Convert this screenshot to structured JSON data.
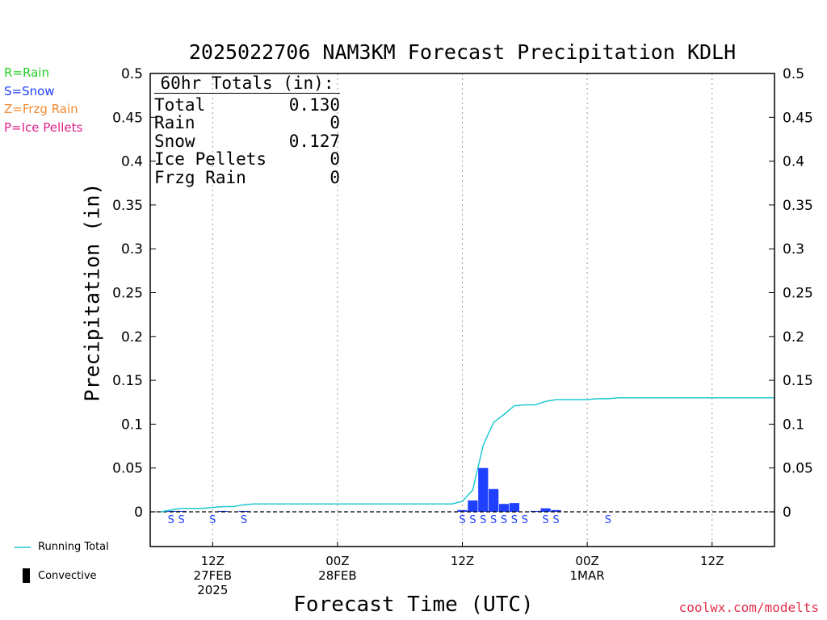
{
  "chart_data": {
    "type": "bar",
    "title": "2025022706 NAM3KM Forecast Precipitation KDLH",
    "xlabel": "Forecast Time (UTC)",
    "ylabel": "Precipitation (in)",
    "ylim": [
      0,
      0.5
    ],
    "y_ticks": [
      "0",
      "0.05",
      "0.1",
      "0.15",
      "0.2",
      "0.25",
      "0.3",
      "0.35",
      "0.4",
      "0.45",
      "0.5"
    ],
    "x_range_hours": [
      6,
      66
    ],
    "x_ticks": [
      {
        "hour": 12,
        "label": "12Z",
        "date": "27FEB",
        "year": "2025"
      },
      {
        "hour": 24,
        "label": "00Z",
        "date": "28FEB",
        "year": ""
      },
      {
        "hour": 36,
        "label": "12Z",
        "date": "",
        "year": ""
      },
      {
        "hour": 48,
        "label": "00Z",
        "date": "1MAR",
        "year": ""
      },
      {
        "hour": 60,
        "label": "12Z",
        "date": "",
        "year": ""
      }
    ],
    "series": [
      {
        "name": "Snow",
        "kind": "bars",
        "color": "#2040ff",
        "points": [
          {
            "hour": 8,
            "value": 0.001
          },
          {
            "hour": 9,
            "value": 0.001
          },
          {
            "hour": 13,
            "value": 0.001
          },
          {
            "hour": 15,
            "value": 0.001
          },
          {
            "hour": 36,
            "value": 0.002
          },
          {
            "hour": 37,
            "value": 0.013
          },
          {
            "hour": 38,
            "value": 0.05
          },
          {
            "hour": 39,
            "value": 0.026
          },
          {
            "hour": 40,
            "value": 0.009
          },
          {
            "hour": 41,
            "value": 0.01
          },
          {
            "hour": 43,
            "value": 0.001
          },
          {
            "hour": 44,
            "value": 0.004
          },
          {
            "hour": 45,
            "value": 0.002
          }
        ]
      },
      {
        "name": "Running Total",
        "kind": "line",
        "color": "#20c8d0",
        "points": [
          {
            "hour": 7,
            "value": 0.0
          },
          {
            "hour": 8,
            "value": 0.002
          },
          {
            "hour": 9,
            "value": 0.004
          },
          {
            "hour": 10,
            "value": 0.004
          },
          {
            "hour": 11,
            "value": 0.004
          },
          {
            "hour": 12,
            "value": 0.005
          },
          {
            "hour": 13,
            "value": 0.006
          },
          {
            "hour": 14,
            "value": 0.006
          },
          {
            "hour": 15,
            "value": 0.008
          },
          {
            "hour": 16,
            "value": 0.009
          },
          {
            "hour": 20,
            "value": 0.009
          },
          {
            "hour": 28,
            "value": 0.009
          },
          {
            "hour": 35,
            "value": 0.009
          },
          {
            "hour": 36,
            "value": 0.012
          },
          {
            "hour": 37,
            "value": 0.025
          },
          {
            "hour": 38,
            "value": 0.076
          },
          {
            "hour": 39,
            "value": 0.102
          },
          {
            "hour": 40,
            "value": 0.111
          },
          {
            "hour": 41,
            "value": 0.121
          },
          {
            "hour": 42,
            "value": 0.122
          },
          {
            "hour": 43,
            "value": 0.122
          },
          {
            "hour": 44,
            "value": 0.126
          },
          {
            "hour": 45,
            "value": 0.128
          },
          {
            "hour": 46,
            "value": 0.128
          },
          {
            "hour": 47,
            "value": 0.128
          },
          {
            "hour": 48,
            "value": 0.128
          },
          {
            "hour": 49,
            "value": 0.129
          },
          {
            "hour": 50,
            "value": 0.129
          },
          {
            "hour": 51,
            "value": 0.13
          },
          {
            "hour": 66,
            "value": 0.13
          }
        ]
      }
    ],
    "ptype_markers": [
      {
        "hour": 8,
        "symbol": "S"
      },
      {
        "hour": 9,
        "symbol": "S"
      },
      {
        "hour": 12,
        "symbol": "S"
      },
      {
        "hour": 15,
        "symbol": "S"
      },
      {
        "hour": 36,
        "symbol": "S"
      },
      {
        "hour": 37,
        "symbol": "S"
      },
      {
        "hour": 38,
        "symbol": "S"
      },
      {
        "hour": 39,
        "symbol": "S"
      },
      {
        "hour": 40,
        "symbol": "S"
      },
      {
        "hour": 41,
        "symbol": "S"
      },
      {
        "hour": 42,
        "symbol": "S"
      },
      {
        "hour": 44,
        "symbol": "S"
      },
      {
        "hour": 45,
        "symbol": "S"
      },
      {
        "hour": 50,
        "symbol": "S"
      }
    ]
  },
  "legend": {
    "rain": {
      "text": "R=Rain",
      "color": "#22d022"
    },
    "snow": {
      "text": "S=Snow",
      "color": "#2040ff"
    },
    "frzg": {
      "text": "Z=Frzg Rain",
      "color": "#f08a30"
    },
    "pellets": {
      "text": "P=Ice Pellets",
      "color": "#e0208a"
    },
    "running_total": "Running Total",
    "convective": "Convective"
  },
  "totals": {
    "header": "60hr Totals (in):",
    "rows": [
      {
        "label": "Total",
        "value": "0.130"
      },
      {
        "label": "Rain",
        "value": "0"
      },
      {
        "label": "Snow",
        "value": "0.127"
      },
      {
        "label": "Ice Pellets",
        "value": "0"
      },
      {
        "label": "Frzg Rain",
        "value": "0"
      }
    ]
  },
  "watermark": "coolwx.com/modelts"
}
